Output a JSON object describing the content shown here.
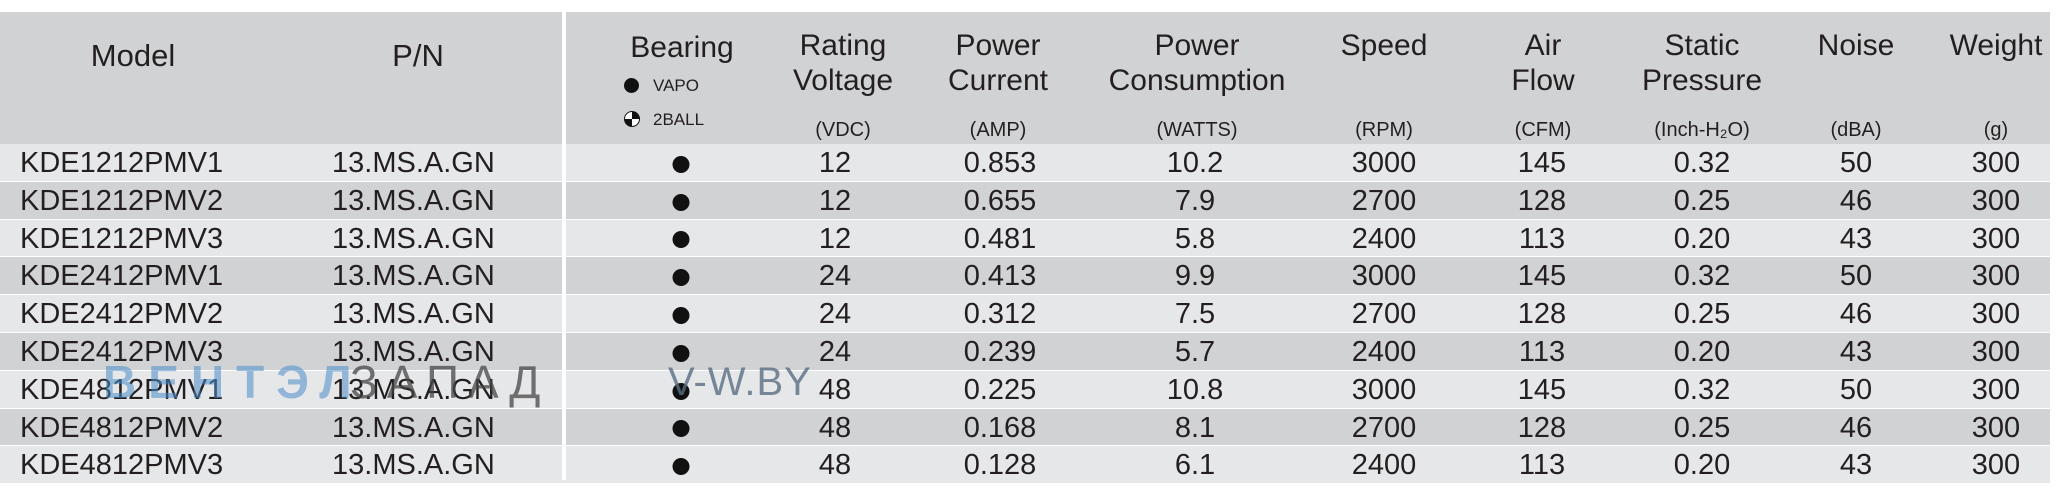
{
  "header": {
    "model": "Model",
    "pn": "P/N",
    "bearing": "Bearing",
    "bearing_legend": [
      {
        "icon": "vapo-bearing-icon",
        "label": "VAPO"
      },
      {
        "icon": "ball-bearing-icon",
        "label": "2BALL"
      }
    ],
    "voltage": {
      "line1": "Rating",
      "line2": "Voltage",
      "unit": "(VDC)"
    },
    "current": {
      "line1": "Power",
      "line2": "Current",
      "unit": "(AMP)"
    },
    "consumption": {
      "line1": "Power",
      "line2": "Consumption",
      "unit": "(WATTS)"
    },
    "speed": {
      "line1": "Speed",
      "unit": "(RPM)"
    },
    "airflow": {
      "line1": "Air",
      "line2": "Flow",
      "unit": "(CFM)"
    },
    "pressure": {
      "line1": "Static",
      "line2": "Pressure",
      "unit": "(Inch-H₂O)"
    },
    "noise": {
      "line1": "Noise",
      "unit": "(dBA)"
    },
    "weight": {
      "line1": "Weight",
      "unit": "(g)"
    }
  },
  "rows": [
    {
      "model": "KDE1212PMV1",
      "pn": "13.MS.A.GN",
      "bearing": "vapo",
      "voltage": "12",
      "current": "0.853",
      "watts": "10.2",
      "rpm": "3000",
      "cfm": "145",
      "pressure": "0.32",
      "noise": "50",
      "weight": "300"
    },
    {
      "model": "KDE1212PMV2",
      "pn": "13.MS.A.GN",
      "bearing": "vapo",
      "voltage": "12",
      "current": "0.655",
      "watts": "7.9",
      "rpm": "2700",
      "cfm": "128",
      "pressure": "0.25",
      "noise": "46",
      "weight": "300"
    },
    {
      "model": "KDE1212PMV3",
      "pn": "13.MS.A.GN",
      "bearing": "vapo",
      "voltage": "12",
      "current": "0.481",
      "watts": "5.8",
      "rpm": "2400",
      "cfm": "113",
      "pressure": "0.20",
      "noise": "43",
      "weight": "300"
    },
    {
      "model": "KDE2412PMV1",
      "pn": "13.MS.A.GN",
      "bearing": "vapo",
      "voltage": "24",
      "current": "0.413",
      "watts": "9.9",
      "rpm": "3000",
      "cfm": "145",
      "pressure": "0.32",
      "noise": "50",
      "weight": "300"
    },
    {
      "model": "KDE2412PMV2",
      "pn": "13.MS.A.GN",
      "bearing": "vapo",
      "voltage": "24",
      "current": "0.312",
      "watts": "7.5",
      "rpm": "2700",
      "cfm": "128",
      "pressure": "0.25",
      "noise": "46",
      "weight": "300"
    },
    {
      "model": "KDE2412PMV3",
      "pn": "13.MS.A.GN",
      "bearing": "vapo",
      "voltage": "24",
      "current": "0.239",
      "watts": "5.7",
      "rpm": "2400",
      "cfm": "113",
      "pressure": "0.20",
      "noise": "43",
      "weight": "300"
    },
    {
      "model": "KDE4812PMV1",
      "pn": "13.MS.A.GN",
      "bearing": "vapo",
      "voltage": "48",
      "current": "0.225",
      "watts": "10.8",
      "rpm": "3000",
      "cfm": "145",
      "pressure": "0.32",
      "noise": "50",
      "weight": "300"
    },
    {
      "model": "KDE4812PMV2",
      "pn": "13.MS.A.GN",
      "bearing": "vapo",
      "voltage": "48",
      "current": "0.168",
      "watts": "8.1",
      "rpm": "2700",
      "cfm": "128",
      "pressure": "0.25",
      "noise": "46",
      "weight": "300"
    },
    {
      "model": "KDE4812PMV3",
      "pn": "13.MS.A.GN",
      "bearing": "vapo",
      "voltage": "48",
      "current": "0.128",
      "watts": "6.1",
      "rpm": "2400",
      "cfm": "113",
      "pressure": "0.20",
      "noise": "43",
      "weight": "300"
    }
  ],
  "watermark": {
    "part1": "ВЕНТЭЛ",
    "part2": "ЗАПАД",
    "part3": "V-W.BY"
  },
  "colors": {
    "header_bg": "#d1d2d4",
    "row_light": "#e6e7e9",
    "row_dark": "#d1d2d4",
    "text": "#231f20"
  }
}
